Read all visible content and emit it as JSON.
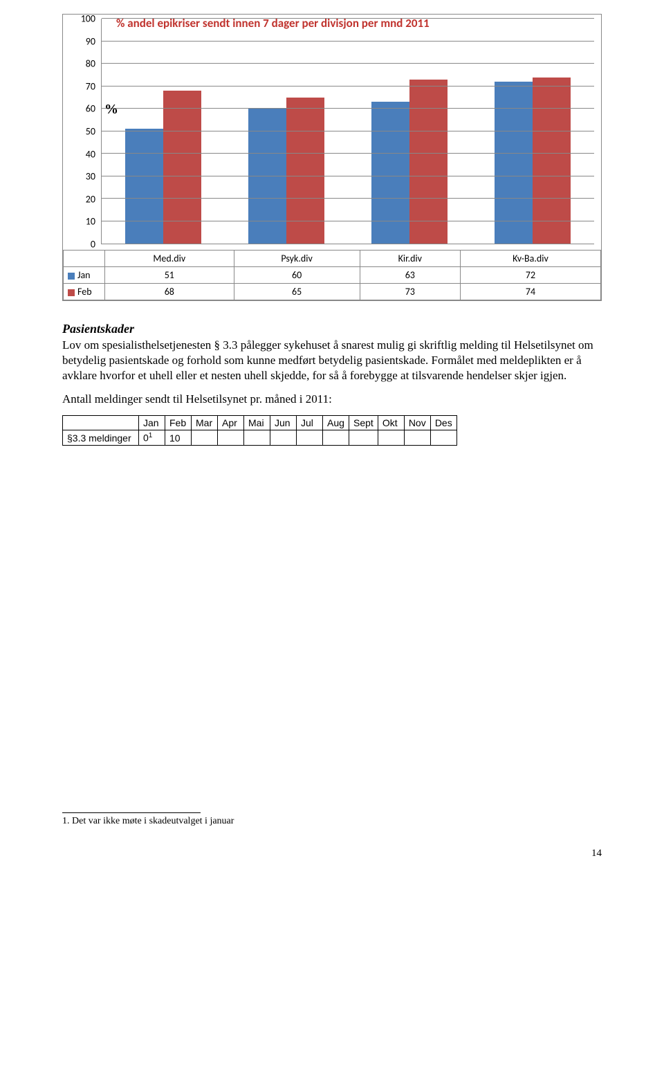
{
  "chart": {
    "title": "% andel epikriser sendt innen 7 dager per divisjon per mnd 2011",
    "y_ticks": [
      100,
      90,
      80,
      70,
      60,
      50,
      40,
      30,
      20,
      10,
      0
    ],
    "ymax": 100,
    "pct_symbol": "%",
    "categories": [
      "Med.div",
      "Psyk.div",
      "Kir.div",
      "Kv-Ba.div"
    ],
    "series": [
      {
        "label": "Jan",
        "color": "#4a7ebb",
        "values": [
          51,
          60,
          63,
          72
        ]
      },
      {
        "label": "Feb",
        "color": "#be4b48",
        "values": [
          68,
          65,
          73,
          74
        ]
      }
    ],
    "grid_color": "#888888",
    "background": "#ffffff"
  },
  "text": {
    "heading": "Pasientskader",
    "para1": "Lov om spesialisthelsetjenesten § 3.3 pålegger sykehuset å snarest mulig gi skriftlig melding til Helsetilsynet om betydelig pasientskade og forhold som kunne medført betydelig pasientskade. Formålet med meldeplikten er å avklare hvorfor et uhell eller et nesten uhell skjedde, for så å forebygge at tilsvarende hendelser skjer igjen.",
    "para2": "Antall meldinger sendt til Helsetilsynet pr. måned i 2011:"
  },
  "table": {
    "months": [
      "Jan",
      "Feb",
      "Mar",
      "Apr",
      "Mai",
      "Jun",
      "Jul",
      "Aug",
      "Sept",
      "Okt",
      "Nov",
      "Des"
    ],
    "row_label": "§3.3 meldinger",
    "row_values": [
      "0",
      "10",
      "",
      "",
      "",
      "",
      "",
      "",
      "",
      "",
      "",
      ""
    ],
    "superscript": "1"
  },
  "footnote": {
    "marker": "1",
    "text": ". Det var ikke møte i skadeutvalget i januar"
  },
  "page_number": "14"
}
